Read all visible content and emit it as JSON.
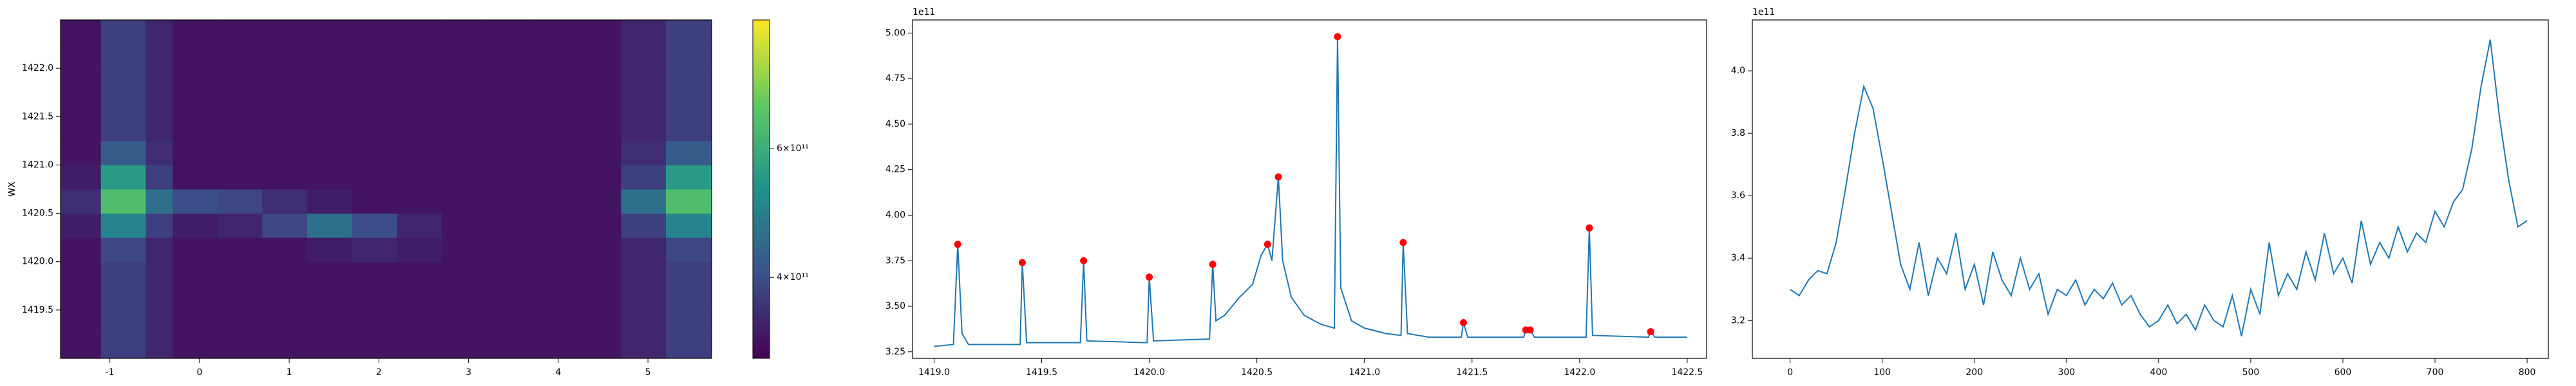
{
  "chart_data": [
    {
      "type": "heatmap",
      "ylabel": "WX",
      "colormap": "viridis",
      "log_color": true,
      "clim": [
        310000000000.0,
        900000000000.0
      ],
      "cticks": [
        {
          "value": 400000000000.0,
          "label": "4×10¹¹"
        },
        {
          "value": 600000000000.0,
          "label": "6×10¹¹"
        }
      ],
      "xlim": [
        -1.55,
        5.71
      ],
      "ylim": [
        1419.0,
        1422.5
      ],
      "xticks": [
        -1,
        0,
        1,
        2,
        3,
        4,
        5
      ],
      "yticks": [
        1419.5,
        {
          "value": 1420,
          "label": "1420.0"
        },
        1420.5,
        {
          "value": 1421,
          "label": "1421.0"
        },
        1421.5,
        {
          "value": 1422,
          "label": "1422.0"
        }
      ],
      "xedges": [
        -1.55,
        -1.1,
        -0.6,
        -0.3,
        0.2,
        0.7,
        1.2,
        1.7,
        2.2,
        2.7,
        3.2,
        3.7,
        4.2,
        4.7,
        5.2,
        5.71
      ],
      "yedges": [
        1419.0,
        1419.25,
        1419.5,
        1419.75,
        1420.0,
        1420.25,
        1420.5,
        1420.75,
        1421.0,
        1421.25,
        1421.5,
        1421.75,
        1422.0,
        1422.25,
        1422.5
      ],
      "z": [
        [
          330000000000.0,
          380000000000.0,
          350000000000.0,
          330000000000.0,
          330000000000.0,
          330000000000.0,
          330000000000.0,
          330000000000.0,
          330000000000.0,
          330000000000.0,
          330000000000.0,
          330000000000.0,
          330000000000.0,
          350000000000.0,
          380000000000.0
        ],
        [
          330000000000.0,
          380000000000.0,
          350000000000.0,
          330000000000.0,
          330000000000.0,
          330000000000.0,
          330000000000.0,
          330000000000.0,
          330000000000.0,
          330000000000.0,
          330000000000.0,
          330000000000.0,
          330000000000.0,
          350000000000.0,
          380000000000.0
        ],
        [
          330000000000.0,
          380000000000.0,
          350000000000.0,
          330000000000.0,
          330000000000.0,
          330000000000.0,
          330000000000.0,
          330000000000.0,
          330000000000.0,
          330000000000.0,
          330000000000.0,
          330000000000.0,
          330000000000.0,
          350000000000.0,
          380000000000.0
        ],
        [
          330000000000.0,
          380000000000.0,
          350000000000.0,
          330000000000.0,
          330000000000.0,
          330000000000.0,
          330000000000.0,
          330000000000.0,
          330000000000.0,
          330000000000.0,
          330000000000.0,
          330000000000.0,
          330000000000.0,
          350000000000.0,
          380000000000.0
        ],
        [
          330000000000.0,
          390000000000.0,
          350000000000.0,
          330000000000.0,
          330000000000.0,
          330000000000.0,
          340000000000.0,
          350000000000.0,
          340000000000.0,
          330000000000.0,
          330000000000.0,
          330000000000.0,
          330000000000.0,
          350000000000.0,
          390000000000.0
        ],
        [
          340000000000.0,
          500000000000.0,
          380000000000.0,
          340000000000.0,
          350000000000.0,
          390000000000.0,
          460000000000.0,
          400000000000.0,
          350000000000.0,
          330000000000.0,
          330000000000.0,
          330000000000.0,
          330000000000.0,
          380000000000.0,
          500000000000.0
        ],
        [
          360000000000.0,
          650000000000.0,
          460000000000.0,
          400000000000.0,
          390000000000.0,
          360000000000.0,
          340000000000.0,
          330000000000.0,
          330000000000.0,
          330000000000.0,
          330000000000.0,
          330000000000.0,
          330000000000.0,
          460000000000.0,
          650000000000.0
        ],
        [
          340000000000.0,
          550000000000.0,
          380000000000.0,
          330000000000.0,
          330000000000.0,
          330000000000.0,
          330000000000.0,
          330000000000.0,
          330000000000.0,
          330000000000.0,
          330000000000.0,
          330000000000.0,
          330000000000.0,
          380000000000.0,
          550000000000.0
        ],
        [
          330000000000.0,
          420000000000.0,
          360000000000.0,
          330000000000.0,
          330000000000.0,
          330000000000.0,
          330000000000.0,
          330000000000.0,
          330000000000.0,
          330000000000.0,
          330000000000.0,
          330000000000.0,
          330000000000.0,
          360000000000.0,
          420000000000.0
        ],
        [
          330000000000.0,
          380000000000.0,
          350000000000.0,
          330000000000.0,
          330000000000.0,
          330000000000.0,
          330000000000.0,
          330000000000.0,
          330000000000.0,
          330000000000.0,
          330000000000.0,
          330000000000.0,
          330000000000.0,
          350000000000.0,
          380000000000.0
        ],
        [
          330000000000.0,
          380000000000.0,
          350000000000.0,
          330000000000.0,
          330000000000.0,
          330000000000.0,
          330000000000.0,
          330000000000.0,
          330000000000.0,
          330000000000.0,
          330000000000.0,
          330000000000.0,
          330000000000.0,
          350000000000.0,
          380000000000.0
        ],
        [
          330000000000.0,
          380000000000.0,
          350000000000.0,
          330000000000.0,
          330000000000.0,
          330000000000.0,
          330000000000.0,
          330000000000.0,
          330000000000.0,
          330000000000.0,
          330000000000.0,
          330000000000.0,
          330000000000.0,
          350000000000.0,
          380000000000.0
        ],
        [
          330000000000.0,
          380000000000.0,
          350000000000.0,
          330000000000.0,
          330000000000.0,
          330000000000.0,
          330000000000.0,
          330000000000.0,
          330000000000.0,
          330000000000.0,
          330000000000.0,
          330000000000.0,
          330000000000.0,
          350000000000.0,
          380000000000.0
        ],
        [
          330000000000.0,
          380000000000.0,
          350000000000.0,
          330000000000.0,
          330000000000.0,
          330000000000.0,
          330000000000.0,
          330000000000.0,
          330000000000.0,
          330000000000.0,
          330000000000.0,
          330000000000.0,
          330000000000.0,
          350000000000.0,
          380000000000.0
        ]
      ]
    },
    {
      "type": "line",
      "y_offset_label": "1e11",
      "xlim": [
        1418.9,
        1422.59
      ],
      "ylim": [
        3.214,
        5.072
      ],
      "xticks": [
        {
          "value": 1419,
          "label": "1419.0"
        },
        1419.5,
        {
          "value": 1420,
          "label": "1420.0"
        },
        1420.5,
        {
          "value": 1421,
          "label": "1421.0"
        },
        1421.5,
        {
          "value": 1422,
          "label": "1422.0"
        },
        1422.5
      ],
      "yticks": [
        3.25,
        {
          "value": 3.5,
          "label": "3.50"
        },
        3.75,
        {
          "value": 4,
          "label": "4.00"
        },
        4.25,
        {
          "value": 4.5,
          "label": "4.50"
        },
        4.75,
        {
          "value": 5,
          "label": "5.00"
        }
      ],
      "series": [
        {
          "style": "line",
          "color": "#1f77b4",
          "x": [
            1419.0,
            1419.09,
            1419.11,
            1419.13,
            1419.16,
            1419.4,
            1419.41,
            1419.43,
            1419.68,
            1419.695,
            1419.71,
            1419.99,
            1420.0,
            1420.02,
            1420.28,
            1420.295,
            1420.31,
            1420.35,
            1420.42,
            1420.48,
            1420.52,
            1420.55,
            1420.57,
            1420.6,
            1420.62,
            1420.66,
            1420.72,
            1420.8,
            1420.86,
            1420.875,
            1420.89,
            1420.94,
            1421.0,
            1421.1,
            1421.17,
            1421.18,
            1421.2,
            1421.3,
            1421.45,
            1421.46,
            1421.48,
            1421.74,
            1421.75,
            1421.77,
            1421.79,
            1422.03,
            1422.045,
            1422.06,
            1422.32,
            1422.33,
            1422.35,
            1422.5
          ],
          "values": [
            3.28,
            3.29,
            3.84,
            3.35,
            3.29,
            3.29,
            3.74,
            3.3,
            3.3,
            3.75,
            3.31,
            3.3,
            3.66,
            3.31,
            3.32,
            3.73,
            3.42,
            3.45,
            3.55,
            3.62,
            3.78,
            3.84,
            3.75,
            4.21,
            3.75,
            3.55,
            3.45,
            3.4,
            3.38,
            4.98,
            3.6,
            3.42,
            3.38,
            3.35,
            3.34,
            3.85,
            3.35,
            3.33,
            3.33,
            3.41,
            3.33,
            3.33,
            3.37,
            3.37,
            3.33,
            3.33,
            3.93,
            3.34,
            3.33,
            3.36,
            3.33,
            3.33
          ]
        },
        {
          "style": "markers",
          "color": "#ff0000",
          "x": [
            1419.11,
            1419.41,
            1419.695,
            1420.0,
            1420.295,
            1420.55,
            1420.6,
            1420.875,
            1421.18,
            1421.46,
            1421.75,
            1421.77,
            1422.045,
            1422.33
          ],
          "values": [
            3.84,
            3.74,
            3.75,
            3.66,
            3.73,
            3.84,
            4.21,
            4.98,
            3.85,
            3.41,
            3.37,
            3.37,
            3.93,
            3.36
          ]
        }
      ]
    },
    {
      "type": "line",
      "y_offset_label": "1e11",
      "xlim": [
        -41,
        823
      ],
      "ylim": [
        3.079,
        4.163
      ],
      "xticks": [
        0,
        100,
        200,
        300,
        400,
        500,
        600,
        700,
        800
      ],
      "yticks": [
        3.2,
        3.4,
        3.6,
        3.8,
        {
          "value": 4,
          "label": "4.0"
        }
      ],
      "series": [
        {
          "style": "line",
          "color": "#1f77b4",
          "x": [
            0,
            10,
            20,
            30,
            40,
            50,
            60,
            70,
            80,
            90,
            100,
            110,
            120,
            130,
            140,
            150,
            160,
            170,
            180,
            190,
            200,
            210,
            220,
            230,
            240,
            250,
            260,
            270,
            280,
            290,
            300,
            310,
            320,
            330,
            340,
            350,
            360,
            370,
            380,
            390,
            400,
            410,
            420,
            430,
            440,
            450,
            460,
            470,
            480,
            490,
            500,
            510,
            520,
            530,
            540,
            550,
            560,
            570,
            580,
            590,
            600,
            610,
            620,
            630,
            640,
            650,
            660,
            670,
            680,
            690,
            700,
            710,
            720,
            730,
            740,
            750,
            760,
            770,
            780,
            790,
            800
          ],
          "values": [
            3.3,
            3.28,
            3.33,
            3.36,
            3.35,
            3.45,
            3.62,
            3.8,
            3.95,
            3.88,
            3.72,
            3.55,
            3.38,
            3.3,
            3.45,
            3.28,
            3.4,
            3.35,
            3.48,
            3.3,
            3.38,
            3.25,
            3.42,
            3.33,
            3.28,
            3.4,
            3.3,
            3.35,
            3.22,
            3.3,
            3.28,
            3.33,
            3.25,
            3.3,
            3.27,
            3.32,
            3.25,
            3.28,
            3.22,
            3.18,
            3.2,
            3.25,
            3.19,
            3.22,
            3.17,
            3.25,
            3.2,
            3.18,
            3.28,
            3.15,
            3.3,
            3.22,
            3.45,
            3.28,
            3.35,
            3.3,
            3.42,
            3.33,
            3.48,
            3.35,
            3.4,
            3.32,
            3.52,
            3.38,
            3.45,
            3.4,
            3.5,
            3.42,
            3.48,
            3.45,
            3.55,
            3.5,
            3.58,
            3.62,
            3.75,
            3.95,
            4.1,
            3.85,
            3.65,
            3.5,
            3.52
          ]
        }
      ]
    }
  ]
}
